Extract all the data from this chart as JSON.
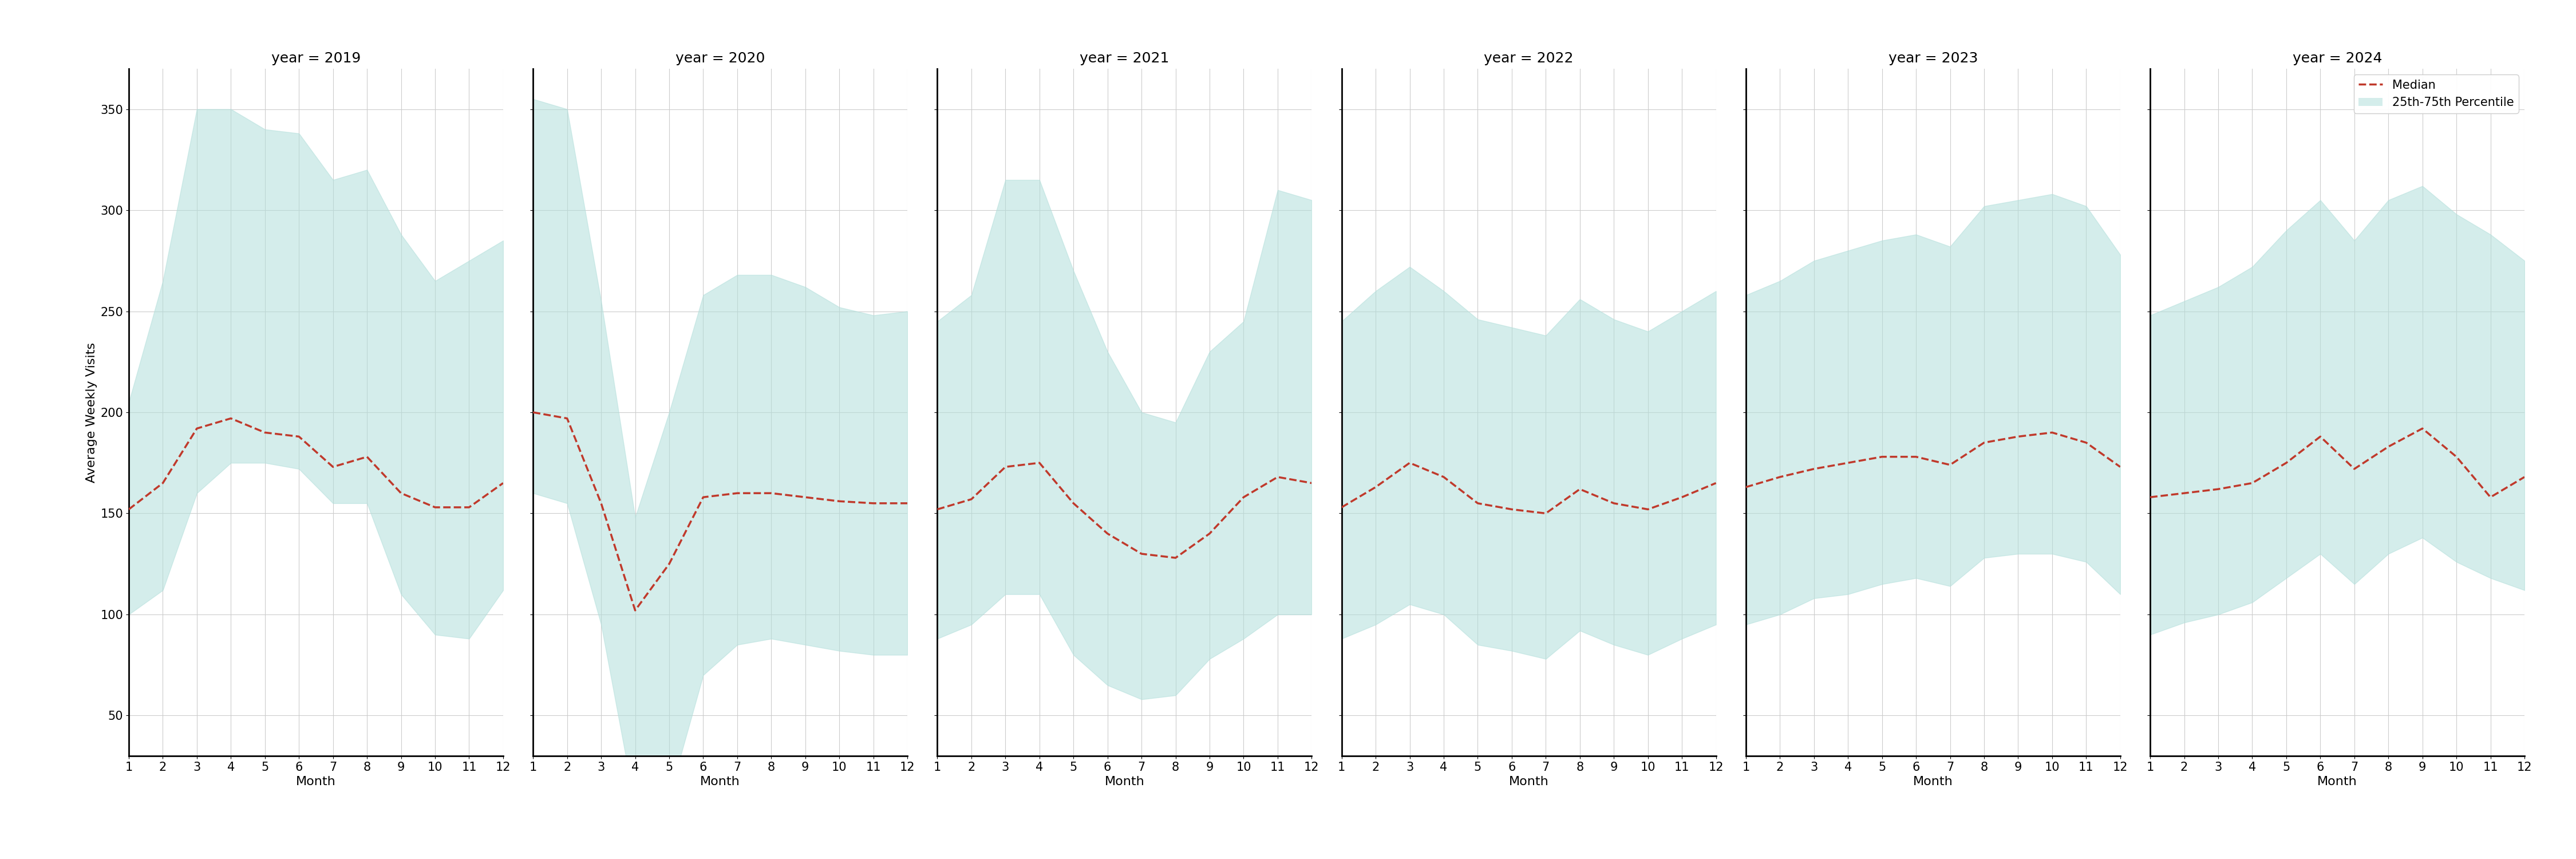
{
  "years": [
    2019,
    2020,
    2021,
    2022,
    2023,
    2024
  ],
  "months": [
    1,
    2,
    3,
    4,
    5,
    6,
    7,
    8,
    9,
    10,
    11,
    12
  ],
  "median": {
    "2019": [
      152,
      165,
      192,
      197,
      190,
      188,
      173,
      178,
      160,
      153,
      153,
      165
    ],
    "2020": [
      200,
      197,
      155,
      102,
      125,
      158,
      160,
      160,
      158,
      156,
      155,
      155
    ],
    "2021": [
      152,
      157,
      173,
      175,
      155,
      140,
      130,
      128,
      140,
      158,
      168,
      165
    ],
    "2022": [
      153,
      163,
      175,
      168,
      155,
      152,
      150,
      162,
      155,
      152,
      158,
      165
    ],
    "2023": [
      163,
      168,
      172,
      175,
      178,
      178,
      174,
      185,
      188,
      190,
      185,
      173
    ],
    "2024": [
      158,
      160,
      162,
      165,
      175,
      188,
      172,
      183,
      192,
      178,
      158,
      168
    ]
  },
  "p25": {
    "2019": [
      100,
      112,
      160,
      175,
      175,
      172,
      155,
      155,
      110,
      90,
      88,
      112
    ],
    "2020": [
      160,
      155,
      95,
      5,
      10,
      70,
      85,
      88,
      85,
      82,
      80,
      80
    ],
    "2021": [
      88,
      95,
      110,
      110,
      80,
      65,
      58,
      60,
      78,
      88,
      100,
      100
    ],
    "2022": [
      88,
      95,
      105,
      100,
      85,
      82,
      78,
      92,
      85,
      80,
      88,
      95
    ],
    "2023": [
      95,
      100,
      108,
      110,
      115,
      118,
      114,
      128,
      130,
      130,
      126,
      110
    ],
    "2024": [
      90,
      96,
      100,
      106,
      118,
      130,
      115,
      130,
      138,
      126,
      118,
      112
    ]
  },
  "p75": {
    "2019": [
      205,
      265,
      350,
      350,
      340,
      338,
      315,
      320,
      288,
      265,
      275,
      285
    ],
    "2020": [
      355,
      350,
      255,
      148,
      200,
      258,
      268,
      268,
      262,
      252,
      248,
      250
    ],
    "2021": [
      245,
      258,
      315,
      315,
      270,
      230,
      200,
      195,
      230,
      245,
      310,
      305
    ],
    "2022": [
      245,
      260,
      272,
      260,
      246,
      242,
      238,
      256,
      246,
      240,
      250,
      260
    ],
    "2023": [
      258,
      265,
      275,
      280,
      285,
      288,
      282,
      302,
      305,
      308,
      302,
      278
    ],
    "2024": [
      248,
      255,
      262,
      272,
      290,
      305,
      285,
      305,
      312,
      298,
      288,
      275
    ]
  },
  "ylabel": "Average Weekly Visits",
  "xlabel": "Month",
  "ylim": [
    30,
    370
  ],
  "yticks": [
    50,
    100,
    150,
    200,
    250,
    300,
    350
  ],
  "xticks": [
    1,
    2,
    3,
    4,
    5,
    6,
    7,
    8,
    9,
    10,
    11,
    12
  ],
  "fill_color": "#b2dfdb",
  "fill_alpha": 0.55,
  "line_color": "#c0392b",
  "line_style": "--",
  "line_width": 2.5,
  "bg_color": "#ffffff",
  "grid_color": "#cccccc",
  "title_fontsize": 18,
  "label_fontsize": 16,
  "tick_fontsize": 15,
  "legend_fontsize": 15
}
